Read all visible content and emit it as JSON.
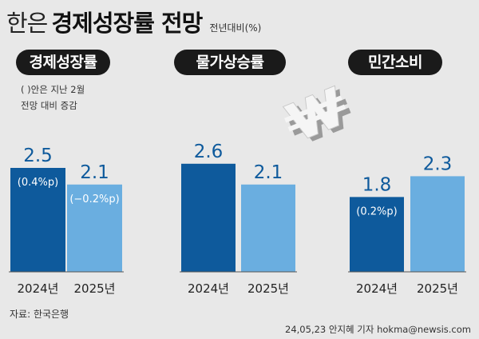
{
  "header": {
    "title_prefix": "한은",
    "title_main": "경제성장률 전망",
    "unit": "전년대비(%)"
  },
  "note_lines": [
    "( )안은 지난 2월",
    "전망 대비 증감"
  ],
  "footer": {
    "source": "자료: 한국은행",
    "credit": "24,05,23 안지혜 기자 hokma@newsis.com",
    "watermark": "NEWSIS"
  },
  "colors": {
    "y2024": "#0e5a9c",
    "y2025": "#6aaee0",
    "pill_bg": "#1a1a1a",
    "value_label": "#0e5a9c"
  },
  "chart_data": [
    {
      "type": "bar",
      "title": "경제성장률",
      "categories": [
        "2024년",
        "2025년"
      ],
      "values": [
        2.5,
        2.1
      ],
      "value_labels": [
        "2.5",
        "2.1"
      ],
      "change_labels": [
        "(0.4%p)",
        "(−0.2%p)"
      ],
      "ylim": [
        0,
        3.5
      ]
    },
    {
      "type": "bar",
      "title": "물가상승률",
      "categories": [
        "2024년",
        "2025년"
      ],
      "values": [
        2.6,
        2.1
      ],
      "value_labels": [
        "2.6",
        "2.1"
      ],
      "change_labels": [
        "",
        ""
      ],
      "ylim": [
        0,
        3.5
      ]
    },
    {
      "type": "bar",
      "title": "민간소비",
      "categories": [
        "2024년",
        "2025년"
      ],
      "values": [
        1.8,
        2.3
      ],
      "value_labels": [
        "1.8",
        "2.3"
      ],
      "change_labels": [
        "(0.2%p)",
        ""
      ],
      "ylim": [
        0,
        3.5
      ]
    }
  ]
}
